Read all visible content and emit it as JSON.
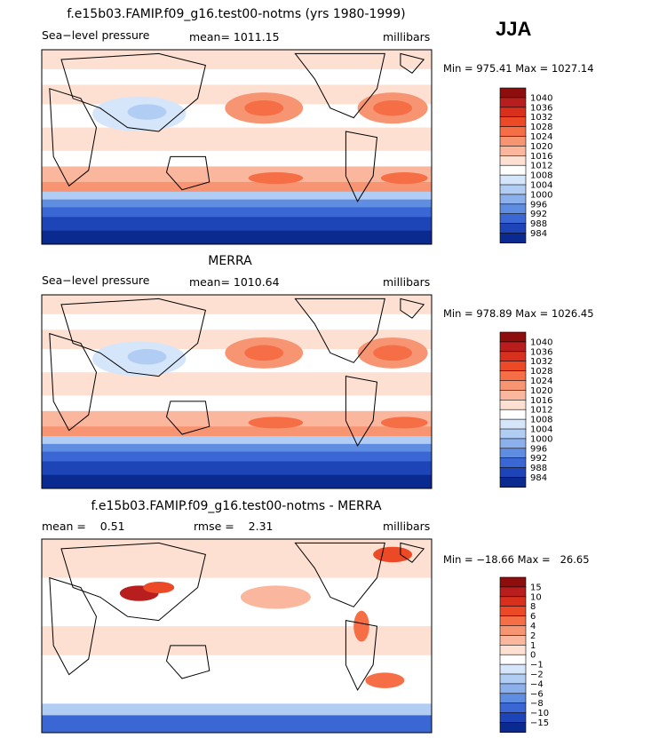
{
  "season": "JJA",
  "chart_data": [
    {
      "type": "heatmap",
      "title": "f.e15b03.FAMIP.f09_g16.test00-notms (yrs 1980-1999)",
      "left_label": "Sea−level pressure",
      "center_label": "mean= 1011.15",
      "units": "millibars",
      "stats": "Min = 975.41 Max = 1027.14",
      "min": 975.41,
      "max": 1027.14,
      "mean": 1011.15,
      "colorbar_levels": [
        "1040",
        "1036",
        "1032",
        "1028",
        "1024",
        "1020",
        "1016",
        "1012",
        "1008",
        "1004",
        "1000",
        "996",
        "992",
        "988",
        "984"
      ],
      "colorbar_colors": [
        "#8e0d0d",
        "#b81e1e",
        "#d8301c",
        "#ec4a26",
        "#f56e45",
        "#f79472",
        "#fab79e",
        "#fde0d1",
        "#ffffff",
        "#d6e6fa",
        "#b2cdf4",
        "#8cb0ec",
        "#5f8de2",
        "#3a67d3",
        "#1d45b8",
        "#0a2a90"
      ]
    },
    {
      "type": "heatmap",
      "title": "MERRA",
      "left_label": "Sea−level pressure",
      "center_label": "mean= 1010.64",
      "units": "millibars",
      "stats": "Min = 978.89 Max = 1026.45",
      "min": 978.89,
      "max": 1026.45,
      "mean": 1010.64,
      "colorbar_levels": [
        "1040",
        "1036",
        "1032",
        "1028",
        "1024",
        "1020",
        "1016",
        "1012",
        "1008",
        "1004",
        "1000",
        "996",
        "992",
        "988",
        "984"
      ],
      "colorbar_colors": [
        "#8e0d0d",
        "#b81e1e",
        "#d8301c",
        "#ec4a26",
        "#f56e45",
        "#f79472",
        "#fab79e",
        "#fde0d1",
        "#ffffff",
        "#d6e6fa",
        "#b2cdf4",
        "#8cb0ec",
        "#5f8de2",
        "#3a67d3",
        "#1d45b8",
        "#0a2a90"
      ]
    },
    {
      "type": "heatmap",
      "title": "f.e15b03.FAMIP.f09_g16.test00-notms - MERRA",
      "left_label": "mean =    0.51",
      "center_label": "rmse =    2.31",
      "units": "millibars",
      "stats": "Min = −18.66 Max =   26.65",
      "min": -18.66,
      "max": 26.65,
      "mean": 0.51,
      "rmse": 2.31,
      "colorbar_levels": [
        "15",
        "10",
        "8",
        "6",
        "4",
        "2",
        "1",
        "0",
        "−1",
        "−2",
        "−4",
        "−6",
        "−8",
        "−10",
        "−15"
      ],
      "colorbar_colors": [
        "#8e0d0d",
        "#b81e1e",
        "#d8301c",
        "#ec4a26",
        "#f56e45",
        "#f79472",
        "#fab79e",
        "#fde0d1",
        "#ffffff",
        "#d6e6fa",
        "#b2cdf4",
        "#8cb0ec",
        "#5f8de2",
        "#3a67d3",
        "#1d45b8",
        "#0a2a90"
      ]
    }
  ]
}
